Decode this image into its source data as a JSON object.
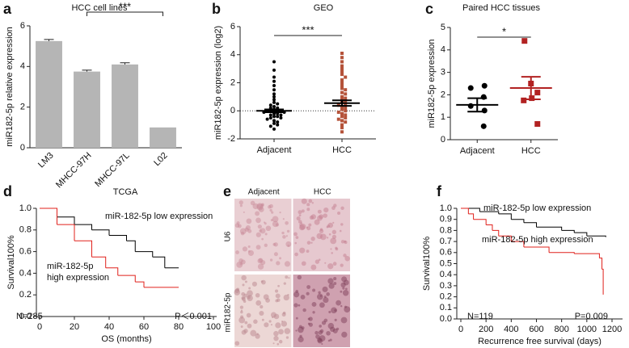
{
  "chart_data": [
    {
      "panel": "a",
      "type": "bar",
      "title": "HCC cell lines",
      "y_label": "miR182-5p relative expression",
      "categories": [
        "LM3",
        "MHCC-97H",
        "MHCC-97L",
        "L02"
      ],
      "values": [
        5.25,
        3.75,
        4.1,
        1.0
      ],
      "errors": [
        0.08,
        0.07,
        0.08,
        0
      ],
      "color": "#b5b5b5",
      "ylim": [
        0,
        6
      ],
      "yticks": [
        0,
        2,
        4,
        6
      ],
      "significance": "***"
    },
    {
      "panel": "b",
      "type": "dot",
      "title": "GEO",
      "y_label": "miR182-5p expression (log2)",
      "categories": [
        "Adjacent",
        "HCC"
      ],
      "colors": [
        "#000000",
        "#b5533a"
      ],
      "markers": [
        "circle",
        "square"
      ],
      "values": [
        [
          3.5,
          2.9,
          2.4,
          2.1,
          1.8,
          1.5,
          1.2,
          1.0,
          0.8,
          0.6,
          0.5,
          0.4,
          0.3,
          0.2,
          0.2,
          0.1,
          0.1,
          0.0,
          0.0,
          0.0,
          -0.1,
          -0.1,
          -0.2,
          -0.2,
          -0.3,
          -0.3,
          -0.4,
          -0.4,
          -0.5,
          -0.5,
          -0.6,
          -0.7,
          -0.8,
          -0.9,
          -1.0,
          -1.1,
          -1.3
        ],
        [
          4.1,
          3.8,
          3.5,
          3.2,
          3.0,
          2.8,
          2.6,
          2.4,
          2.2,
          2.0,
          1.8,
          1.6,
          1.5,
          1.3,
          1.2,
          1.0,
          0.9,
          0.8,
          0.7,
          0.6,
          0.5,
          0.4,
          0.3,
          0.2,
          0.1,
          0.0,
          -0.1,
          -0.2,
          -0.3,
          -0.4,
          -0.5,
          -0.6,
          -0.7,
          -0.8,
          -1.0,
          -1.2,
          -1.5
        ]
      ],
      "means": [
        0.0,
        0.55
      ],
      "sems": [
        0.1,
        0.2
      ],
      "reference_line": 0,
      "ylim": [
        -2,
        6
      ],
      "yticks": [
        -2,
        0,
        2,
        4,
        6
      ],
      "significance": "***"
    },
    {
      "panel": "c",
      "type": "dot",
      "title": "Paired HCC tissues",
      "y_label": "miR182-5p expression",
      "categories": [
        "Adjacent",
        "HCC"
      ],
      "colors": [
        "#000000",
        "#b22222"
      ],
      "markers": [
        "circle",
        "square"
      ],
      "values": [
        [
          2.3,
          2.4,
          1.9,
          1.5,
          1.3,
          0.6
        ],
        [
          4.4,
          2.5,
          2.1,
          1.85,
          1.75,
          0.7
        ]
      ],
      "means": [
        1.55,
        2.3
      ],
      "sems": [
        0.3,
        0.5
      ],
      "ylim": [
        0,
        5
      ],
      "yticks": [
        0,
        1,
        2,
        3,
        4,
        5
      ],
      "significance": "*"
    },
    {
      "panel": "d",
      "type": "survival",
      "title": "TCGA",
      "x_label": "OS (months)",
      "y_label": "Survival100%",
      "series": [
        {
          "name": "miR-182-5p low expression",
          "color": "#000000",
          "x": [
            0,
            10,
            20,
            30,
            40,
            50,
            55,
            65,
            72,
            80
          ],
          "values": [
            1.0,
            0.92,
            0.85,
            0.8,
            0.75,
            0.7,
            0.6,
            0.55,
            0.45,
            0.45
          ]
        },
        {
          "name": "miR-182-5p high expression",
          "color": "#e0201b",
          "x": [
            0,
            10,
            20,
            30,
            38,
            45,
            55,
            60,
            80
          ],
          "values": [
            1.0,
            0.85,
            0.7,
            0.55,
            0.45,
            0.38,
            0.32,
            0.27,
            0.27
          ]
        }
      ],
      "annotations": [
        "N=285",
        "P＜0.001"
      ],
      "xlim": [
        0,
        100
      ],
      "xticks": [
        0,
        20,
        40,
        60,
        80,
        100
      ],
      "ylim": [
        0,
        1
      ],
      "yticks": [
        {
          "value": 0,
          "label": "0.0"
        },
        0.2,
        0.4,
        0.6,
        0.8,
        {
          "value": 1,
          "label": "1.0"
        }
      ]
    },
    {
      "panel": "e",
      "type": "image",
      "columns": [
        "Adjacent",
        "HCC"
      ],
      "rows": [
        "U6",
        "miR182-5p"
      ]
    },
    {
      "panel": "f",
      "type": "survival",
      "x_label": "Recurrence free survival (days)",
      "y_label": "Survival100%",
      "series": [
        {
          "name": "miR-182-5p low expression",
          "color": "#000000",
          "x": [
            0,
            50,
            150,
            300,
            400,
            500,
            600,
            800,
            900,
            1000,
            1150
          ],
          "values": [
            1.0,
            1.0,
            0.97,
            0.95,
            0.9,
            0.87,
            0.83,
            0.8,
            0.78,
            0.75,
            0.74
          ]
        },
        {
          "name": "miR-182-5p high expression",
          "color": "#e0201b",
          "x": [
            0,
            60,
            100,
            200,
            250,
            300,
            400,
            500,
            700,
            900,
            1100,
            1120,
            1130
          ],
          "values": [
            1.0,
            0.95,
            0.9,
            0.85,
            0.8,
            0.75,
            0.7,
            0.65,
            0.6,
            0.59,
            0.55,
            0.45,
            0.22
          ]
        }
      ],
      "annotations": [
        "N=119",
        "P=0.009"
      ],
      "xlim": [
        0,
        1200
      ],
      "xticks": [
        0,
        200,
        400,
        600,
        800,
        1000,
        1200
      ],
      "ylim": [
        0,
        1
      ],
      "yticks": [
        {
          "value": 0,
          "label": "0.0"
        },
        0.1,
        0.2,
        0.3,
        0.4,
        0.5,
        0.6,
        0.7,
        0.8,
        0.9,
        {
          "value": 1,
          "label": "1.0"
        }
      ]
    }
  ]
}
